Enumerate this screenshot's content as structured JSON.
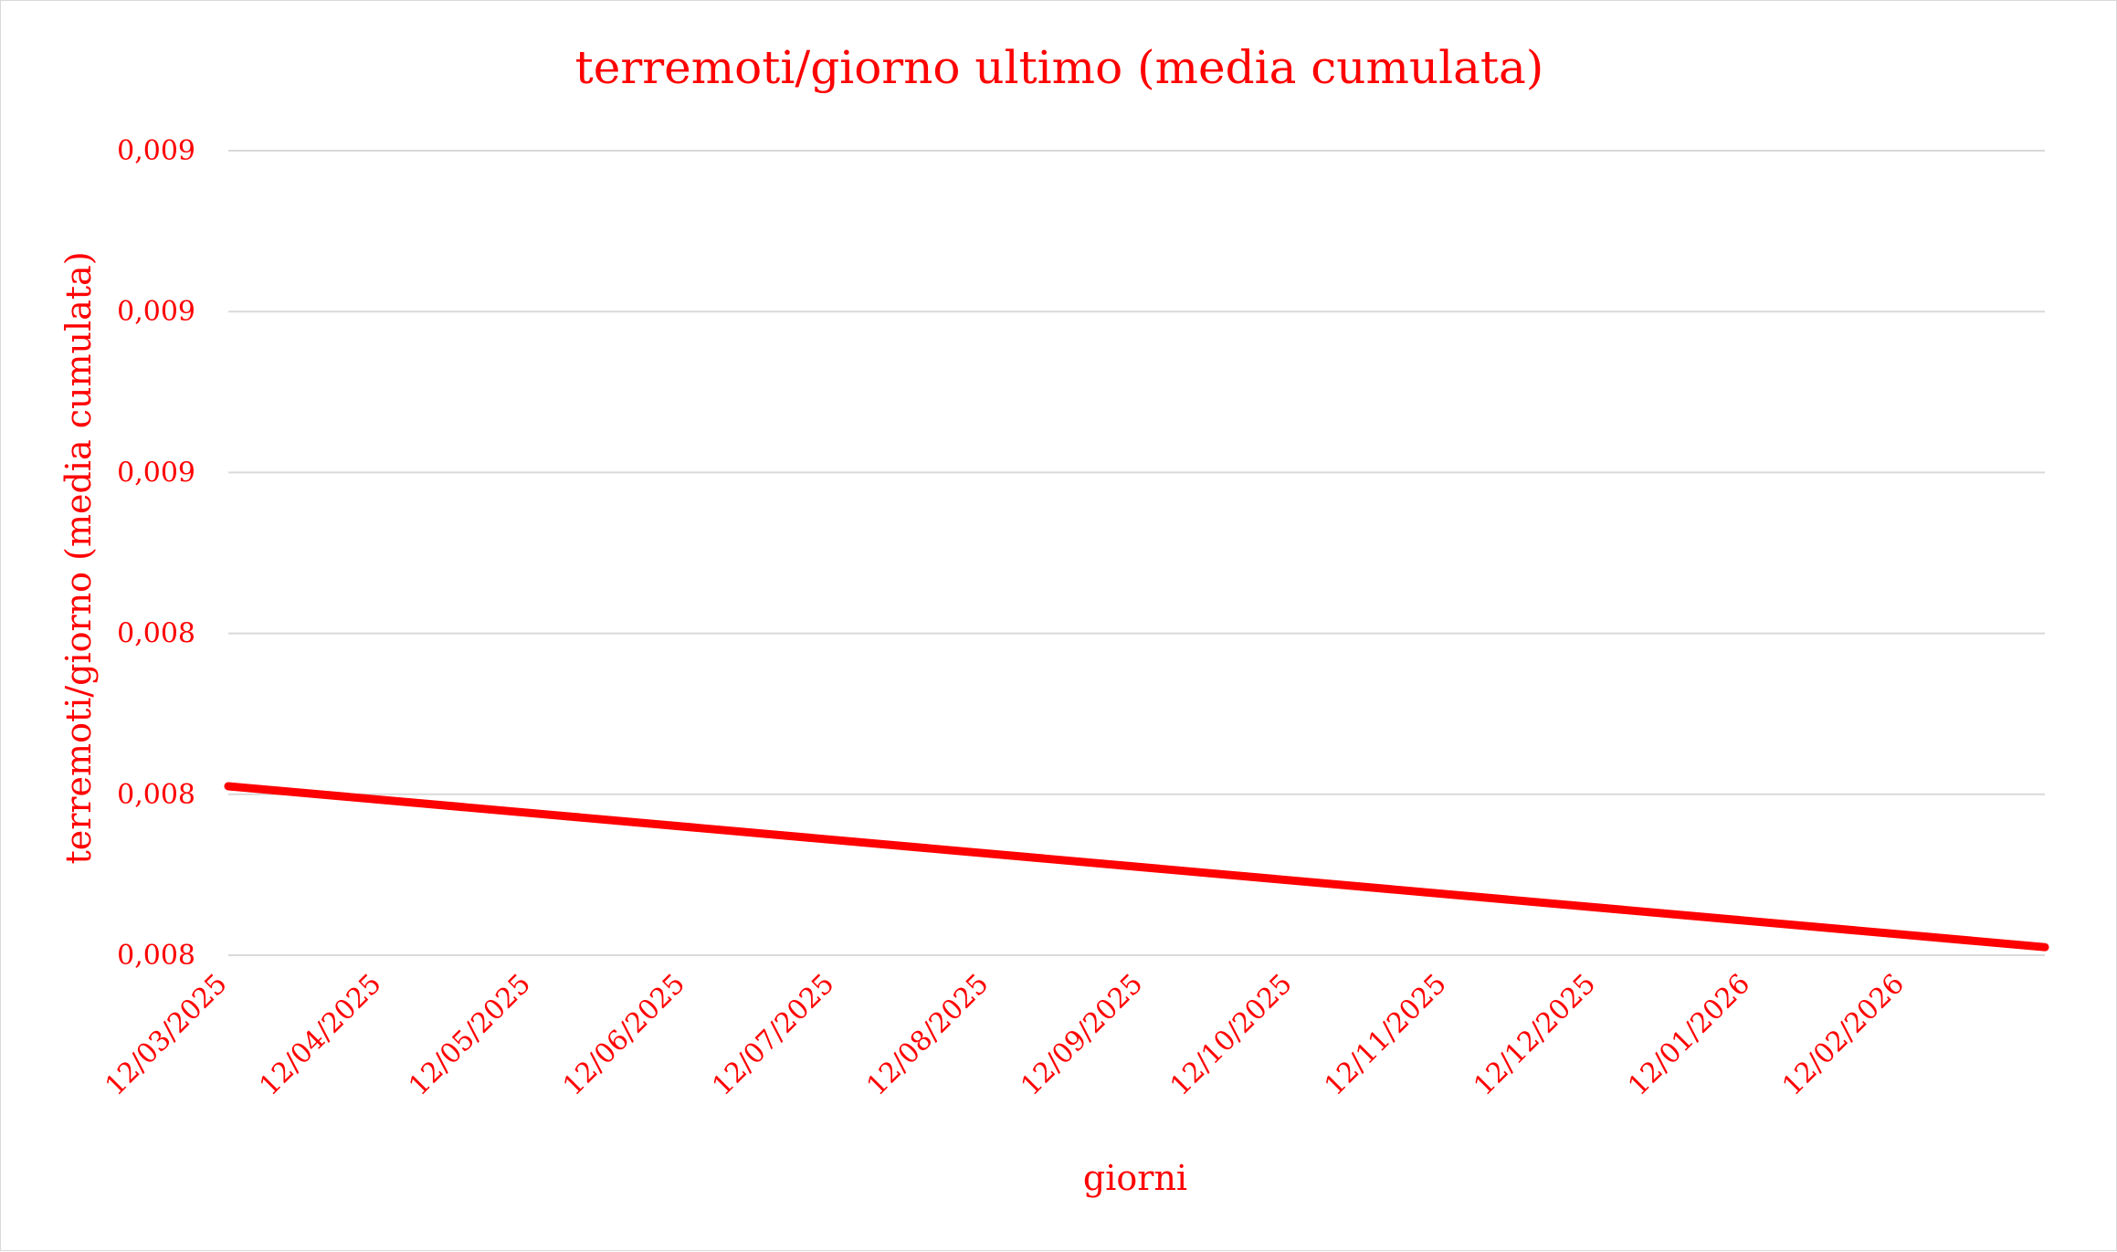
{
  "chart_data": {
    "type": "line",
    "title": "terremoti/giorno ultimo (media cumulata)",
    "xlabel": "giorni",
    "ylabel": "terremoti/giorno (media cumulata)",
    "x_ticks": [
      "12/03/2025",
      "12/04/2025",
      "12/05/2025",
      "12/06/2025",
      "12/07/2025",
      "12/08/2025",
      "12/09/2025",
      "12/10/2025",
      "12/11/2025",
      "12/12/2025",
      "12/01/2026",
      "12/02/2026"
    ],
    "y_ticks": [
      "0,008",
      "0,008",
      "0,008",
      "0,009",
      "0,009",
      "0,009"
    ],
    "ylim": [
      0.008,
      0.009
    ],
    "x": [
      "2025-03-12",
      "2026-03-12"
    ],
    "y": [
      0.00821,
      0.00801
    ],
    "grid": true,
    "legend": "none",
    "color": "#ff0000",
    "gridline_color": "#d9d9d9"
  }
}
